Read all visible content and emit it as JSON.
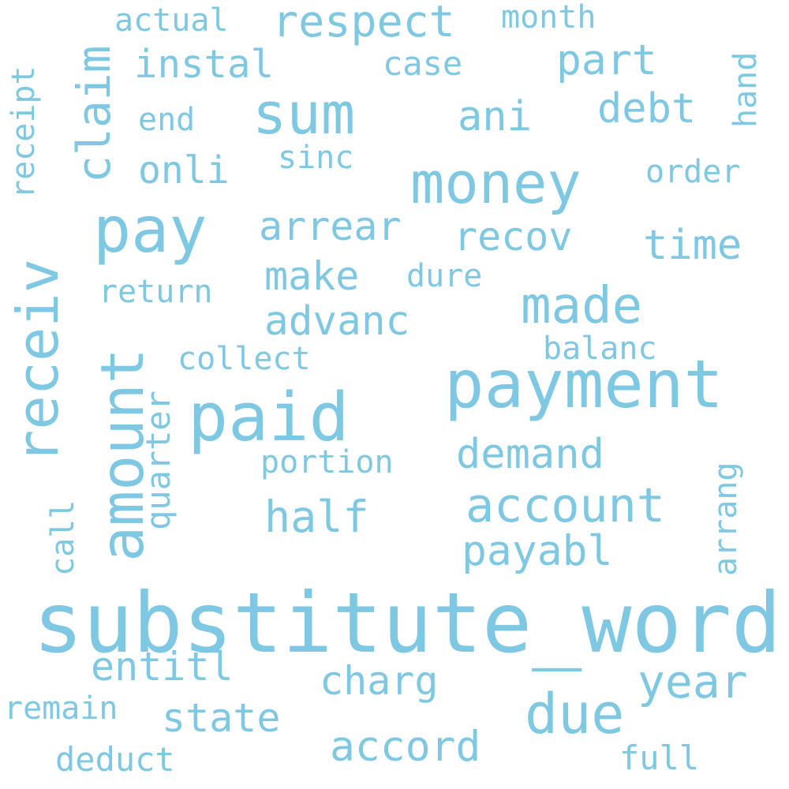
{
  "color": "#7ec8e3",
  "background": "#ffffff",
  "words": [
    {
      "text": "substitute_word",
      "weight": 1.0
    },
    {
      "text": "payment",
      "weight": 0.78
    },
    {
      "text": "paid",
      "weight": 0.78
    },
    {
      "text": "amount",
      "weight": 0.74
    },
    {
      "text": "receiv",
      "weight": 0.72
    },
    {
      "text": "pay",
      "weight": 0.72
    },
    {
      "text": "money",
      "weight": 0.66
    },
    {
      "text": "sum",
      "weight": 0.64
    },
    {
      "text": "due",
      "weight": 0.62
    },
    {
      "text": "made",
      "weight": 0.58
    },
    {
      "text": "account",
      "weight": 0.56
    },
    {
      "text": "claim",
      "weight": 0.54
    },
    {
      "text": "year",
      "weight": 0.52
    },
    {
      "text": "respect",
      "weight": 0.52
    },
    {
      "text": "half",
      "weight": 0.52
    },
    {
      "text": "payabl",
      "weight": 0.5
    },
    {
      "text": "part",
      "weight": 0.5
    },
    {
      "text": "accord",
      "weight": 0.5
    },
    {
      "text": "demand",
      "weight": 0.5
    },
    {
      "text": "advanc",
      "weight": 0.48
    },
    {
      "text": "ani",
      "weight": 0.48
    },
    {
      "text": "debt",
      "weight": 0.48
    },
    {
      "text": "arrear",
      "weight": 0.46
    },
    {
      "text": "recov",
      "weight": 0.46
    },
    {
      "text": "make",
      "weight": 0.46
    },
    {
      "text": "time",
      "weight": 0.46
    },
    {
      "text": "instal",
      "weight": 0.46
    },
    {
      "text": "state",
      "weight": 0.46
    },
    {
      "text": "charg",
      "weight": 0.46
    },
    {
      "text": "entitl",
      "weight": 0.46
    },
    {
      "text": "onli",
      "weight": 0.44
    },
    {
      "text": "quarter",
      "weight": 0.4
    },
    {
      "text": "case",
      "weight": 0.38
    },
    {
      "text": "full",
      "weight": 0.38
    },
    {
      "text": "deduct",
      "weight": 0.38
    },
    {
      "text": "portion",
      "weight": 0.38
    },
    {
      "text": "receipt",
      "weight": 0.38
    },
    {
      "text": "balanc",
      "weight": 0.36
    },
    {
      "text": "hand",
      "weight": 0.36
    },
    {
      "text": "arrang",
      "weight": 0.36
    },
    {
      "text": "month",
      "weight": 0.36
    },
    {
      "text": "actual",
      "weight": 0.36
    },
    {
      "text": "remain",
      "weight": 0.36
    },
    {
      "text": "return",
      "weight": 0.36
    },
    {
      "text": "collect",
      "weight": 0.36
    },
    {
      "text": "call",
      "weight": 0.36
    },
    {
      "text": "dure",
      "weight": 0.36
    },
    {
      "text": "order",
      "weight": 0.34
    },
    {
      "text": "end",
      "weight": 0.34
    },
    {
      "text": "sinc",
      "weight": 0.34
    }
  ]
}
